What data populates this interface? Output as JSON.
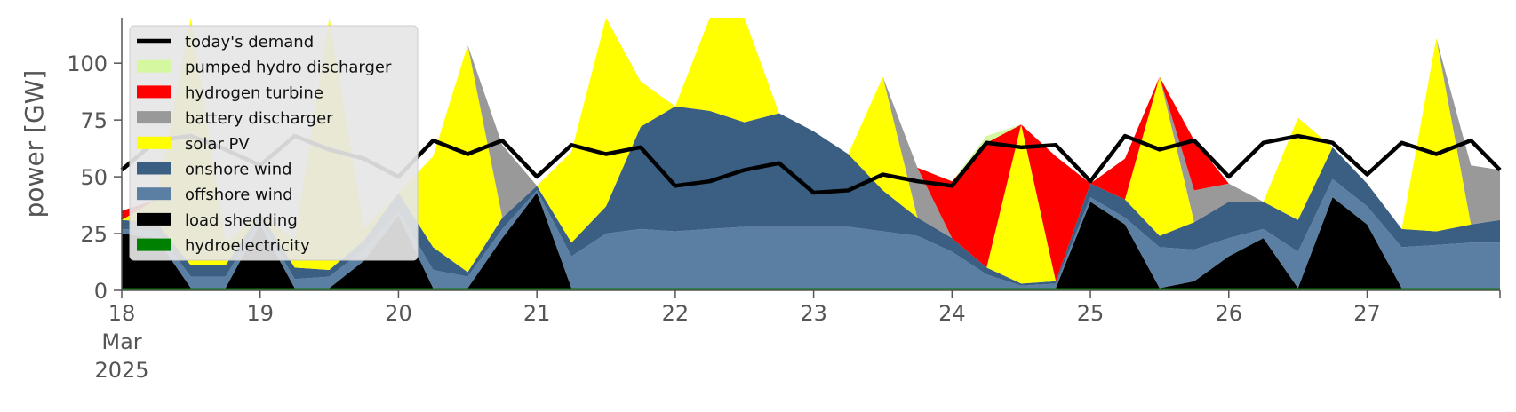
{
  "chart_data": {
    "type": "area",
    "ylabel": "power [GW]",
    "xlabel": "",
    "x_unit": "days",
    "ylim": [
      0,
      120
    ],
    "yticks": [
      0,
      25,
      50,
      75,
      100
    ],
    "xticks": [
      "18",
      "19",
      "20",
      "21",
      "22",
      "23",
      "24",
      "25",
      "26",
      "27"
    ],
    "xtick_secondary": [
      "Mar",
      "2025"
    ],
    "x_range": [
      "2025-03-18 00:00",
      "2025-03-27 23:00"
    ],
    "legend_position": "upper left",
    "grid": false,
    "x": [
      18.0,
      18.25,
      18.5,
      18.75,
      19.0,
      19.25,
      19.5,
      19.75,
      20.0,
      20.25,
      20.5,
      20.75,
      21.0,
      21.25,
      21.5,
      21.75,
      22.0,
      22.25,
      22.5,
      22.75,
      23.0,
      23.25,
      23.5,
      23.75,
      24.0,
      24.25,
      24.5,
      24.75,
      25.0,
      25.25,
      25.5,
      25.75,
      26.0,
      26.25,
      26.5,
      26.75,
      27.0,
      27.25,
      27.5,
      27.75,
      27.96
    ],
    "series": [
      {
        "name": "hydroelectricity",
        "color": "#008000",
        "values": [
          1,
          1,
          1,
          1,
          1,
          1,
          1,
          1,
          1,
          1,
          1,
          1,
          1,
          1,
          1,
          1,
          1,
          1,
          1,
          1,
          1,
          1,
          1,
          1,
          1,
          1,
          1,
          1,
          1,
          1,
          1,
          1,
          1,
          1,
          1,
          1,
          1,
          1,
          1,
          1,
          1
        ]
      },
      {
        "name": "load shedding",
        "color": "#000000",
        "values": [
          24,
          22,
          0,
          0,
          28,
          0,
          0,
          12,
          32,
          0,
          0,
          22,
          42,
          0,
          0,
          0,
          0,
          0,
          0,
          0,
          0,
          0,
          0,
          0,
          0,
          0,
          0,
          0,
          38,
          28,
          0,
          3,
          14,
          22,
          0,
          40,
          28,
          0,
          0,
          0,
          0
        ]
      },
      {
        "name": "offshore wind",
        "color": "#5b7fa3",
        "values": [
          2,
          3,
          5,
          5,
          2,
          4,
          5,
          5,
          2,
          8,
          5,
          4,
          1,
          14,
          24,
          26,
          25,
          26,
          27,
          27,
          27,
          27,
          25,
          23,
          16,
          6,
          1,
          2,
          2,
          3,
          18,
          14,
          8,
          4,
          16,
          8,
          8,
          18,
          19,
          20,
          20
        ]
      },
      {
        "name": "onshore wind",
        "color": "#3a5f82",
        "values": [
          4,
          4,
          5,
          5,
          3,
          5,
          3,
          4,
          8,
          10,
          2,
          5,
          2,
          6,
          12,
          45,
          55,
          52,
          46,
          50,
          42,
          32,
          18,
          8,
          6,
          3,
          1,
          1,
          6,
          8,
          5,
          12,
          16,
          12,
          14,
          14,
          10,
          8,
          6,
          8,
          10
        ]
      },
      {
        "name": "solar PV",
        "color": "#ffff00",
        "values": [
          0,
          10,
          120,
          10,
          0,
          12,
          120,
          5,
          0,
          40,
          100,
          0,
          0,
          40,
          120,
          20,
          0,
          60,
          120,
          0,
          0,
          0,
          50,
          0,
          0,
          0,
          70,
          0,
          0,
          0,
          70,
          0,
          0,
          0,
          45,
          0,
          0,
          0,
          85,
          0,
          0
        ]
      },
      {
        "name": "battery discharger",
        "color": "#999999",
        "values": [
          0,
          0,
          0,
          0,
          0,
          0,
          0,
          0,
          0,
          0,
          0,
          32,
          0,
          0,
          0,
          0,
          0,
          20,
          0,
          0,
          0,
          0,
          0,
          22,
          0,
          0,
          0,
          0,
          0,
          0,
          0,
          14,
          8,
          0,
          0,
          0,
          0,
          0,
          0,
          26,
          22
        ]
      },
      {
        "name": "hydrogen turbine",
        "color": "#ff0000",
        "values": [
          4,
          0,
          0,
          0,
          0,
          0,
          0,
          0,
          0,
          0,
          0,
          0,
          0,
          0,
          0,
          0,
          0,
          0,
          0,
          0,
          0,
          0,
          0,
          0,
          25,
          55,
          0,
          55,
          0,
          18,
          0,
          22,
          0,
          0,
          0,
          0,
          0,
          0,
          0,
          0,
          0
        ]
      },
      {
        "name": "pumped hydro discharger",
        "color": "#d4f7a0",
        "values": [
          0,
          0,
          0,
          0,
          0,
          0,
          0,
          0,
          0,
          0,
          0,
          0,
          0,
          0,
          0,
          0,
          0,
          0,
          0,
          0,
          0,
          0,
          0,
          0,
          0,
          3,
          0,
          0,
          0,
          0,
          0,
          0,
          0,
          0,
          0,
          0,
          0,
          0,
          0,
          0,
          0
        ]
      }
    ],
    "demand": {
      "name": "today's demand",
      "color": "#000000",
      "values": [
        53,
        66,
        68,
        62,
        55,
        68,
        62,
        58,
        50,
        66,
        60,
        66,
        50,
        64,
        60,
        63,
        46,
        48,
        53,
        56,
        43,
        44,
        51,
        48,
        46,
        65,
        63,
        64,
        48,
        68,
        62,
        66,
        50,
        65,
        68,
        65,
        51,
        65,
        60,
        66,
        53
      ]
    },
    "ghost_demand": {
      "color": "#aaaaaa",
      "values": [
        53,
        66,
        68,
        62,
        55,
        68,
        62,
        58,
        50
      ]
    }
  }
}
